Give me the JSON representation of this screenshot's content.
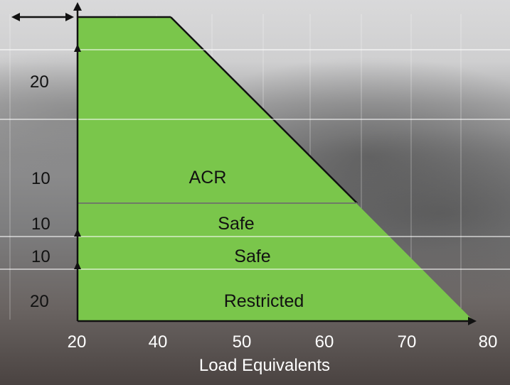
{
  "chart_data": {
    "type": "area",
    "xlabel": "Load Equivalents",
    "x_ticks": [
      "20",
      "40",
      "50",
      "60",
      "70",
      "80"
    ],
    "y_band_labels": [
      "20",
      "10",
      "10",
      "10",
      "20"
    ],
    "regions": [
      {
        "label": "ACR"
      },
      {
        "label": "Safe"
      },
      {
        "label": "Safe"
      },
      {
        "label": "Restricted"
      }
    ],
    "fill_color": "#7ac64b",
    "edge_color": "#111111"
  }
}
